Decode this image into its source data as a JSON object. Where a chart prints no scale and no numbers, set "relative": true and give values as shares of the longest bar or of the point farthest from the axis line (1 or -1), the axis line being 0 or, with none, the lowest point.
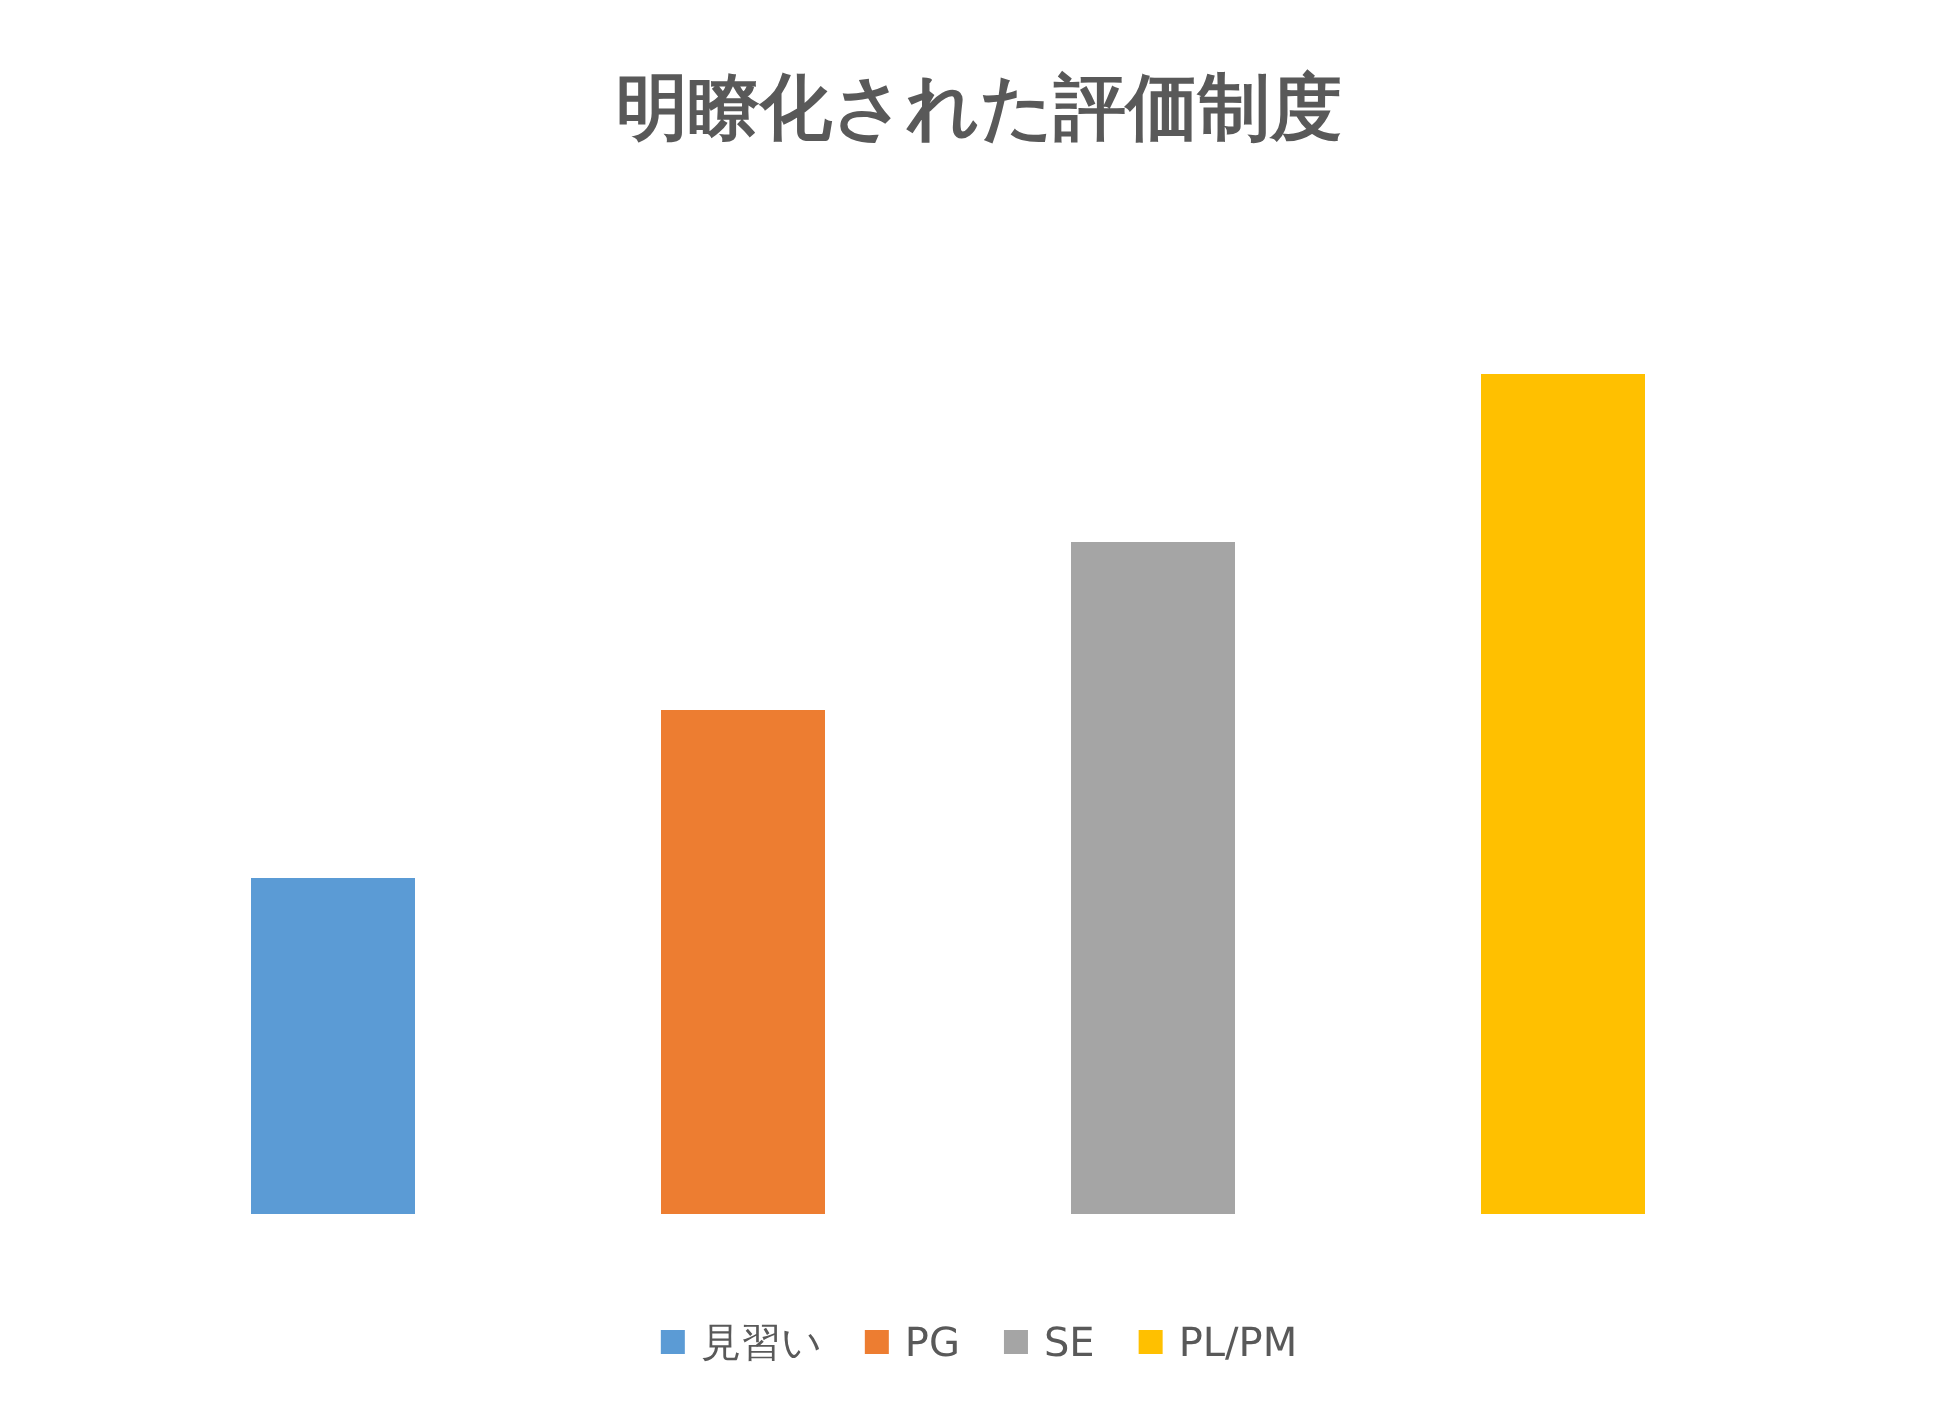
{
  "chart_data": {
    "type": "bar",
    "title": "明瞭化された評価制度",
    "categories": [
      null,
      null,
      null,
      null
    ],
    "series": [
      {
        "name": "見習い",
        "color": "#5b9bd5",
        "values": [
          0.4,
          null,
          null,
          null
        ]
      },
      {
        "name": "PG",
        "color": "#ed7d31",
        "values": [
          null,
          0.6,
          null,
          null
        ]
      },
      {
        "name": "SE",
        "color": "#a5a5a5",
        "values": [
          null,
          null,
          0.8,
          null
        ]
      },
      {
        "name": "PL/PM",
        "color": "#ffc000",
        "values": [
          null,
          null,
          null,
          1
        ]
      }
    ],
    "stacked": true,
    "relative": true,
    "legend": "bottom"
  }
}
